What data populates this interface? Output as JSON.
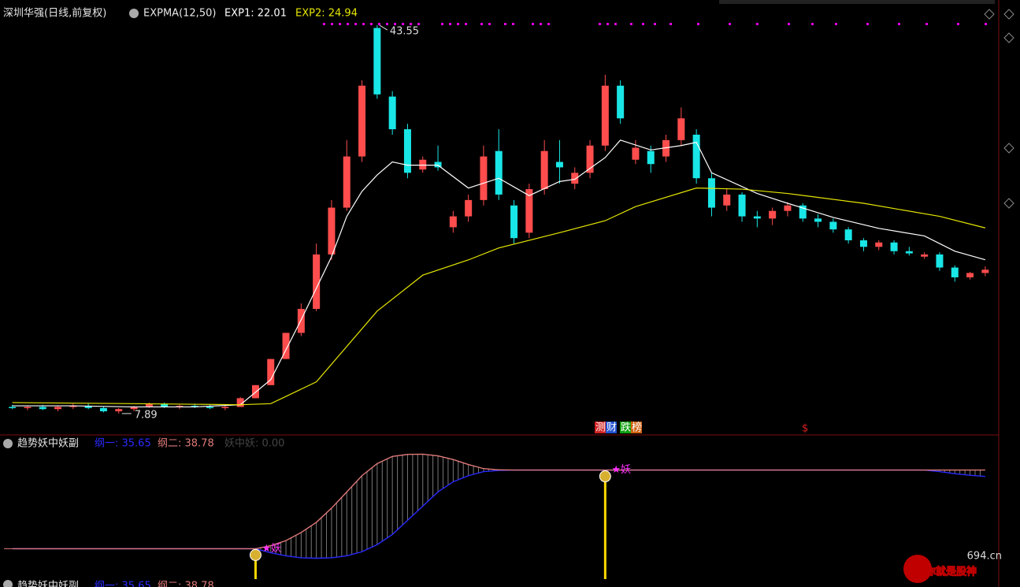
{
  "chart_data": [
    {
      "type": "candlestick",
      "title": "深圳华强(日线,前复权)",
      "indicator": "EXPMA(12,50)",
      "up_color": "#ff4d4d",
      "down_color": "#19e6e6",
      "ylim": [
        6,
        45
      ],
      "candles": [
        [
          8.5,
          8.7,
          8.3,
          8.4
        ],
        [
          8.4,
          8.6,
          8.2,
          8.5
        ],
        [
          8.5,
          8.7,
          8.2,
          8.3
        ],
        [
          8.3,
          8.6,
          8.1,
          8.5
        ],
        [
          8.5,
          8.8,
          8.3,
          8.6
        ],
        [
          8.6,
          8.8,
          8.3,
          8.4
        ],
        [
          8.4,
          8.5,
          8.0,
          8.1
        ],
        [
          8.1,
          8.4,
          7.89,
          8.3
        ],
        [
          8.3,
          8.6,
          8.1,
          8.5
        ],
        [
          8.5,
          8.9,
          8.4,
          8.8
        ],
        [
          8.8,
          8.9,
          8.4,
          8.5
        ],
        [
          8.5,
          8.7,
          8.3,
          8.6
        ],
        [
          8.6,
          8.8,
          8.4,
          8.5
        ],
        [
          8.5,
          8.7,
          8.3,
          8.4
        ],
        [
          8.4,
          8.6,
          8.2,
          8.5
        ],
        [
          8.5,
          9.4,
          8.5,
          9.3
        ],
        [
          9.3,
          10.5,
          9.3,
          10.5
        ],
        [
          10.5,
          12.9,
          10.5,
          12.9
        ],
        [
          12.9,
          15.3,
          12.9,
          15.3
        ],
        [
          15.3,
          18.0,
          15.0,
          17.5
        ],
        [
          17.5,
          23.5,
          17.3,
          22.5
        ],
        [
          22.5,
          27.5,
          22.0,
          26.8
        ],
        [
          26.8,
          33.0,
          26.5,
          31.5
        ],
        [
          31.5,
          38.5,
          31.0,
          38.0
        ],
        [
          43.3,
          43.55,
          36.8,
          37.2
        ],
        [
          37.0,
          37.5,
          33.5,
          34.0
        ],
        [
          34.0,
          34.5,
          29.5,
          30.0
        ],
        [
          30.3,
          31.5,
          30.0,
          31.2
        ],
        [
          31.0,
          32.5,
          30.2,
          30.5
        ],
        [
          25.0,
          26.5,
          24.5,
          26.0
        ],
        [
          26.0,
          28.0,
          25.5,
          27.5
        ],
        [
          27.5,
          32.5,
          27.0,
          31.5
        ],
        [
          32.0,
          34.0,
          27.5,
          28.0
        ],
        [
          27.0,
          27.5,
          23.5,
          24.0
        ],
        [
          24.5,
          29.0,
          24.0,
          28.5
        ],
        [
          28.5,
          33.0,
          28.0,
          32.0
        ],
        [
          31.0,
          33.0,
          29.0,
          30.5
        ],
        [
          29.0,
          30.5,
          28.5,
          30.0
        ],
        [
          30.0,
          33.0,
          29.5,
          32.5
        ],
        [
          32.5,
          39.0,
          32.0,
          38.0
        ],
        [
          38.0,
          38.5,
          34.5,
          35.0
        ],
        [
          31.2,
          33.0,
          30.8,
          32.3
        ],
        [
          32.0,
          32.5,
          30.0,
          30.8
        ],
        [
          31.5,
          33.5,
          31.0,
          33.0
        ],
        [
          33.0,
          36.0,
          32.5,
          35.0
        ],
        [
          33.5,
          34.0,
          29.0,
          29.5
        ],
        [
          29.5,
          30.0,
          26.0,
          26.8
        ],
        [
          27.0,
          28.5,
          26.5,
          28.0
        ],
        [
          28.0,
          28.2,
          25.5,
          26.0
        ],
        [
          26.0,
          26.5,
          25.0,
          25.8
        ],
        [
          25.8,
          26.8,
          25.2,
          26.5
        ],
        [
          26.5,
          27.3,
          26.0,
          27.0
        ],
        [
          27.0,
          27.2,
          25.5,
          25.8
        ],
        [
          25.8,
          26.2,
          25.0,
          25.5
        ],
        [
          25.5,
          25.8,
          24.5,
          24.8
        ],
        [
          24.8,
          25.0,
          23.5,
          23.8
        ],
        [
          23.8,
          24.0,
          22.8,
          23.2
        ],
        [
          23.2,
          23.8,
          22.9,
          23.6
        ],
        [
          23.6,
          23.8,
          22.5,
          22.8
        ],
        [
          22.8,
          23.2,
          22.4,
          22.6
        ],
        [
          22.3,
          22.7,
          22.1,
          22.5
        ],
        [
          22.5,
          22.7,
          21.0,
          21.3
        ],
        [
          21.3,
          21.5,
          20.0,
          20.4
        ],
        [
          20.4,
          20.9,
          20.2,
          20.8
        ],
        [
          20.8,
          21.4,
          20.5,
          21.1
        ]
      ],
      "series": [
        {
          "name": "EXP1: 22.01",
          "color": "#ffffff",
          "x": [
            0,
            4,
            8,
            12,
            15,
            17,
            19,
            21,
            22,
            23,
            24,
            25,
            26,
            28,
            30,
            32,
            34,
            36,
            37,
            39,
            40,
            42,
            44,
            45,
            46,
            49,
            51,
            54,
            57,
            60,
            62,
            64
          ],
          "values": [
            8.6,
            8.6,
            8.5,
            8.5,
            8.7,
            11.0,
            16.5,
            22.3,
            26.0,
            28.3,
            29.8,
            31.0,
            30.7,
            30.7,
            28.6,
            29.5,
            27.9,
            29.2,
            29.4,
            31.4,
            33.0,
            32.1,
            32.5,
            32.8,
            30.0,
            28.1,
            27.2,
            25.9,
            24.9,
            24.2,
            22.8,
            22.01
          ]
        },
        {
          "name": "EXP2: 24.94",
          "color": "#e6e600",
          "x": [
            0,
            8,
            15,
            17,
            20,
            24,
            27,
            30,
            32,
            36,
            39,
            41,
            45,
            48,
            51,
            56,
            61,
            64
          ],
          "values": [
            8.9,
            8.8,
            8.7,
            8.8,
            10.8,
            17.3,
            20.6,
            22.0,
            23.1,
            24.5,
            25.6,
            26.9,
            28.6,
            28.5,
            28.1,
            27.2,
            26.0,
            24.94
          ]
        }
      ],
      "tags": [
        "测",
        "财",
        "跌",
        "榜"
      ],
      "money_tag": "$"
    },
    {
      "type": "line",
      "title": "趋势妖中妖副",
      "ylim": [
        -15,
        53
      ],
      "extra_label": "妖中妖: 0.00",
      "series": [
        {
          "name": "纲一: 35.65",
          "color": "#2a2aff",
          "values": [
            0,
            0,
            0,
            0,
            0,
            0,
            0,
            0,
            0,
            0,
            0,
            0,
            0,
            0,
            0,
            0,
            0,
            -2,
            -3.5,
            -4.5,
            -4.7,
            -4.5,
            -3.5,
            -1.5,
            2,
            7,
            14,
            21,
            28,
            33,
            36,
            38,
            38.6,
            38.8,
            38.8,
            38.8,
            38.8,
            38.8,
            38.8,
            38.8,
            38.8,
            38.8,
            38.8,
            38.8,
            38.8,
            38.8,
            38.8,
            38.8,
            38.8,
            38.8,
            38.8,
            38.8,
            38.8,
            38.8,
            38.8,
            38.8,
            38.8,
            38.8,
            38.8,
            38.8,
            38.8,
            38,
            37,
            36.2,
            35.65
          ]
        },
        {
          "name": "纲二: 38.78",
          "color": "#e07a7a",
          "values": [
            0,
            0,
            0,
            0,
            0,
            0,
            0,
            0,
            0,
            0,
            0,
            0,
            0,
            0,
            0,
            0,
            0,
            1.5,
            4,
            8,
            13,
            20,
            28,
            36,
            42,
            45.5,
            46.5,
            46.6,
            45.8,
            44,
            41.5,
            39.5,
            38.9,
            38.8,
            38.8,
            38.8,
            38.8,
            38.8,
            38.8,
            38.8,
            38.8,
            38.8,
            38.8,
            38.8,
            38.8,
            38.8,
            38.8,
            38.8,
            38.8,
            38.8,
            38.8,
            38.8,
            38.8,
            38.8,
            38.8,
            38.8,
            38.8,
            38.8,
            38.8,
            38.8,
            38.8,
            38.8,
            38.8,
            38.8,
            38.78
          ]
        }
      ],
      "signals": [
        {
          "index": 16,
          "label": "★妖"
        },
        {
          "index": 39,
          "label": "★妖"
        }
      ]
    }
  ],
  "watermark": {
    "text": "你就是股神",
    "site": "694.cn"
  }
}
